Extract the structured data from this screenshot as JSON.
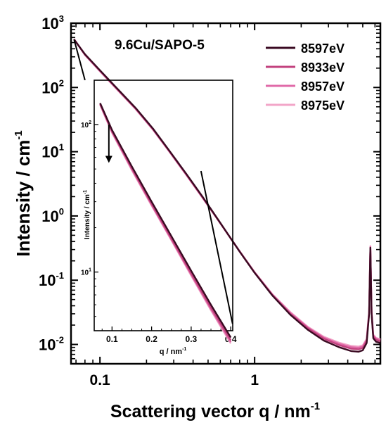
{
  "chart_data": {
    "type": "line",
    "title": "9.6Cu/SAPO-5",
    "main": {
      "xlabel": "Scattering vector q / nm",
      "xlabel_sup": "-1",
      "ylabel": "Intensity / cm",
      "ylabel_sup": "-1",
      "x_scale": "log",
      "y_scale": "log",
      "xlim": [
        0.065,
        6.5
      ],
      "ylim": [
        0.005,
        1000
      ],
      "x_ticks": [
        {
          "value": 0.1,
          "label": "0.1"
        },
        {
          "value": 1,
          "label": "1"
        }
      ],
      "y_ticks": [
        {
          "value": 0.01,
          "base": "10",
          "exp": "-2"
        },
        {
          "value": 0.1,
          "base": "10",
          "exp": "-1"
        },
        {
          "value": 1,
          "base": "10",
          "exp": "0"
        },
        {
          "value": 10,
          "base": "10",
          "exp": "1"
        },
        {
          "value": 100,
          "base": "10",
          "exp": "2"
        },
        {
          "value": 1000,
          "base": "10",
          "exp": "3"
        }
      ],
      "series": [
        {
          "name": "8597eV",
          "color": "#3a0a22",
          "x": [
            0.068,
            0.08,
            0.1,
            0.13,
            0.17,
            0.22,
            0.28,
            0.36,
            0.46,
            0.6,
            0.8,
            1.0,
            1.3,
            1.7,
            2.2,
            2.8,
            3.5,
            4.2,
            4.7,
            5.0,
            5.3,
            5.5,
            5.6,
            5.7,
            5.85,
            6.1,
            6.5
          ],
          "y": [
            560,
            330,
            185,
            95,
            48,
            23,
            10.5,
            4.6,
            2.0,
            0.78,
            0.28,
            0.13,
            0.058,
            0.029,
            0.017,
            0.0115,
            0.0091,
            0.0079,
            0.0077,
            0.0081,
            0.0105,
            0.03,
            0.32,
            0.03,
            0.0125,
            0.011,
            0.0105
          ]
        },
        {
          "name": "8933eV",
          "color": "#c2417e",
          "x": [
            0.068,
            0.08,
            0.1,
            0.13,
            0.17,
            0.22,
            0.28,
            0.36,
            0.46,
            0.6,
            0.8,
            1.0,
            1.3,
            1.7,
            2.2,
            2.8,
            3.5,
            4.2,
            4.7,
            5.0,
            5.3,
            5.5,
            5.6,
            5.7,
            5.85,
            6.1,
            6.5
          ],
          "y": [
            560,
            325,
            182,
            93,
            47,
            22.5,
            10.3,
            4.5,
            1.95,
            0.77,
            0.28,
            0.13,
            0.059,
            0.03,
            0.018,
            0.0123,
            0.0098,
            0.0086,
            0.0084,
            0.0088,
            0.0113,
            0.031,
            0.32,
            0.031,
            0.0133,
            0.0118,
            0.0112
          ]
        },
        {
          "name": "8957eV",
          "color": "#e06aa8",
          "x": [
            0.068,
            0.08,
            0.1,
            0.13,
            0.17,
            0.22,
            0.28,
            0.36,
            0.46,
            0.6,
            0.8,
            1.0,
            1.3,
            1.7,
            2.2,
            2.8,
            3.5,
            4.2,
            4.7,
            5.0,
            5.3,
            5.5,
            5.6,
            5.7,
            5.85,
            6.1,
            6.5
          ],
          "y": [
            565,
            322,
            180,
            92,
            46.5,
            22.2,
            10.2,
            4.45,
            1.93,
            0.77,
            0.28,
            0.132,
            0.06,
            0.031,
            0.0185,
            0.0128,
            0.0103,
            0.0091,
            0.0089,
            0.0093,
            0.0118,
            0.032,
            0.33,
            0.032,
            0.0138,
            0.0123,
            0.0117
          ]
        },
        {
          "name": "8975eV",
          "color": "#f2a6c8",
          "x": [
            0.068,
            0.08,
            0.1,
            0.13,
            0.17,
            0.22,
            0.28,
            0.36,
            0.46,
            0.6,
            0.8,
            1.0,
            1.3,
            1.7,
            2.2,
            2.8,
            3.5,
            4.2,
            4.7,
            5.0,
            5.3,
            5.5,
            5.6,
            5.7,
            5.85,
            6.1,
            6.5
          ],
          "y": [
            570,
            320,
            178,
            91,
            46,
            22,
            10.1,
            4.4,
            1.92,
            0.77,
            0.285,
            0.134,
            0.061,
            0.032,
            0.019,
            0.0132,
            0.0107,
            0.0095,
            0.0093,
            0.0097,
            0.0122,
            0.033,
            0.34,
            0.033,
            0.0142,
            0.0127,
            0.012
          ]
        }
      ],
      "zoom_lines": [
        {
          "x": [
            0.068,
            0.08
          ],
          "y": [
            560,
            130
          ]
        },
        {
          "x": [
            0.45,
            0.72
          ],
          "y": [
            5,
            0.021
          ]
        }
      ]
    },
    "inset": {
      "xlabel": "q  / nm",
      "xlabel_sup": "-1",
      "ylabel": "Intensity / cm",
      "ylabel_sup": "-1",
      "x_scale": "linear",
      "y_scale": "log",
      "xlim": [
        0.055,
        0.405
      ],
      "ylim": [
        4,
        200
      ],
      "x_ticks": [
        {
          "value": 0.1,
          "label": "0.1"
        },
        {
          "value": 0.2,
          "label": "0.2"
        },
        {
          "value": 0.3,
          "label": "0.3"
        },
        {
          "value": 0.4,
          "label": "0.4"
        }
      ],
      "y_ticks": [
        {
          "value": 10,
          "base": "10",
          "exp": "1"
        },
        {
          "value": 100,
          "base": "10",
          "exp": "2"
        }
      ],
      "series": [
        {
          "name": "8597eV",
          "color": "#3a0a22",
          "x": [
            0.07,
            0.1,
            0.15,
            0.2,
            0.25,
            0.3,
            0.35,
            0.4
          ],
          "y": [
            140,
            92,
            52,
            30,
            17.5,
            10.2,
            6.0,
            3.6
          ]
        },
        {
          "name": "8933eV",
          "color": "#c2417e",
          "x": [
            0.07,
            0.1,
            0.15,
            0.2,
            0.25,
            0.3,
            0.35,
            0.4
          ],
          "y": [
            138,
            90,
            50.5,
            29,
            16.9,
            9.8,
            5.75,
            3.45
          ]
        },
        {
          "name": "8957eV",
          "color": "#e06aa8",
          "x": [
            0.07,
            0.1,
            0.15,
            0.2,
            0.25,
            0.3,
            0.35,
            0.4
          ],
          "y": [
            137,
            89,
            49.8,
            28.6,
            16.6,
            9.6,
            5.6,
            3.35
          ]
        },
        {
          "name": "8975eV",
          "color": "#f2a6c8",
          "x": [
            0.07,
            0.1,
            0.15,
            0.2,
            0.25,
            0.3,
            0.35,
            0.4
          ],
          "y": [
            136,
            88,
            49,
            28.2,
            16.4,
            9.45,
            5.5,
            3.28
          ]
        }
      ],
      "arrow": {
        "x": 0.092,
        "y_from": 100,
        "y_to": 55
      }
    },
    "legend": {
      "position": "top-right"
    }
  }
}
